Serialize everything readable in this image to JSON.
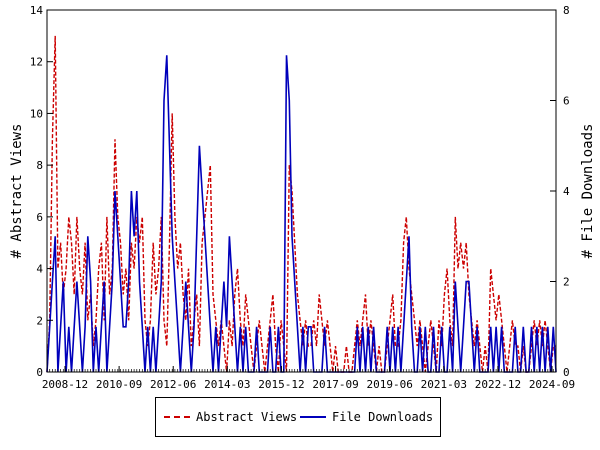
{
  "chart_data": {
    "type": "line",
    "title": "",
    "xlabel": "",
    "ylabel": "# Abstract Views",
    "y2label": "# File Downloads",
    "x_ticks": [
      "2008-12",
      "2010-09",
      "2012-06",
      "2014-03",
      "2015-12",
      "2017-09",
      "2019-06",
      "2021-03",
      "2022-12",
      "2024-09"
    ],
    "ylim": [
      0,
      14
    ],
    "y_ticks": [
      0,
      2,
      4,
      6,
      8,
      10,
      12,
      14
    ],
    "y2lim": [
      0,
      8
    ],
    "y2_ticks": [
      0,
      2,
      4,
      6,
      8
    ],
    "grid": false,
    "legend": "bottom-center",
    "series": [
      {
        "name": "Abstract Views",
        "axis": "left",
        "color": "#cc0000",
        "style": "dashed",
        "values": [
          0,
          2,
          9,
          13,
          4,
          5,
          3,
          4,
          6,
          5,
          3,
          6,
          4,
          3,
          5,
          2,
          3,
          1,
          2,
          4,
          5,
          2,
          6,
          3,
          4,
          9,
          6,
          5,
          3,
          4,
          2,
          5,
          4,
          6,
          5,
          6,
          2,
          1,
          2,
          5,
          3,
          4,
          6,
          2,
          1,
          5,
          10,
          6,
          4,
          5,
          3,
          2,
          4,
          1,
          2,
          3,
          1,
          5,
          6,
          7,
          8,
          3,
          2,
          1,
          2,
          1,
          0,
          2,
          1,
          3,
          4,
          2,
          1,
          3,
          2,
          1,
          0,
          1,
          2,
          1,
          0,
          1,
          2,
          3,
          1,
          0,
          2,
          1,
          0,
          8,
          7,
          5,
          3,
          2,
          1,
          2,
          1,
          1,
          2,
          1,
          3,
          2,
          1,
          2,
          1,
          0,
          1,
          0,
          0,
          0,
          1,
          0,
          0,
          1,
          2,
          1,
          2,
          3,
          1,
          2,
          1,
          0,
          1,
          0,
          0,
          1,
          2,
          3,
          1,
          1,
          2,
          5,
          6,
          4,
          3,
          2,
          1,
          2,
          1,
          0,
          1,
          2,
          1,
          0,
          2,
          1,
          3,
          4,
          2,
          1,
          6,
          4,
          5,
          4,
          5,
          3,
          2,
          1,
          2,
          1,
          0,
          1,
          0,
          4,
          3,
          2,
          3,
          2,
          1,
          0,
          1,
          2,
          1,
          1,
          0,
          1,
          0,
          0,
          1,
          2,
          1,
          2,
          1,
          2,
          1,
          0,
          1,
          1
        ]
      },
      {
        "name": "File Downloads",
        "axis": "right",
        "color": "#0000bb",
        "style": "solid",
        "values": [
          0,
          1,
          2,
          3,
          0,
          1,
          2,
          0,
          1,
          0,
          1,
          2,
          1,
          0,
          1,
          3,
          2,
          0,
          1,
          0,
          1,
          2,
          0,
          1,
          2,
          4,
          3,
          2,
          1,
          1,
          2,
          4,
          3,
          4,
          2,
          1,
          0,
          1,
          0,
          1,
          0,
          1,
          2,
          6,
          7,
          5,
          3,
          2,
          1,
          0,
          1,
          2,
          1,
          0,
          1,
          3,
          5,
          4,
          3,
          2,
          1,
          0,
          1,
          0,
          1,
          2,
          1,
          3,
          2,
          1,
          0,
          1,
          0,
          1,
          0,
          0,
          0,
          1,
          0,
          0,
          0,
          0,
          1,
          0,
          0,
          1,
          0,
          0,
          7,
          6,
          3,
          2,
          1,
          0,
          1,
          0,
          1,
          1,
          0,
          0,
          0,
          0,
          1,
          0,
          0,
          0,
          0,
          0,
          0,
          0,
          0,
          0,
          0,
          0,
          1,
          0,
          1,
          0,
          1,
          0,
          1,
          0,
          0,
          0,
          0,
          1,
          0,
          1,
          0,
          1,
          0,
          1,
          2,
          3,
          1,
          0,
          0,
          1,
          0,
          1,
          0,
          0,
          1,
          0,
          0,
          1,
          0,
          0,
          1,
          0,
          2,
          1,
          0,
          1,
          2,
          2,
          1,
          0,
          1,
          0,
          0,
          0,
          0,
          1,
          0,
          1,
          0,
          1,
          0,
          0,
          0,
          0,
          1,
          0,
          0,
          1,
          0,
          0,
          1,
          0,
          1,
          0,
          1,
          0,
          1,
          0,
          1,
          0
        ]
      }
    ]
  }
}
